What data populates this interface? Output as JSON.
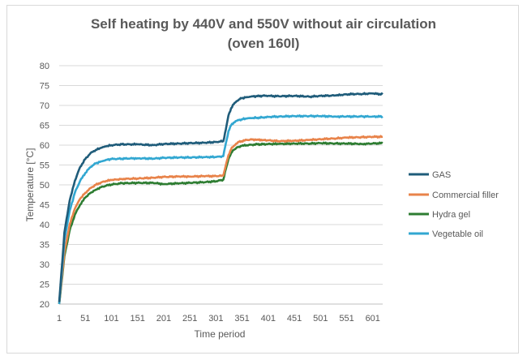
{
  "chart_data": {
    "type": "line",
    "title_line1": "Self heating by 440V and 550V without air circulation",
    "title_line2": "(oven 160l)",
    "xlabel": "Time period",
    "ylabel": "Temperature [°C]",
    "xlim": [
      1,
      620
    ],
    "ylim": [
      20,
      80
    ],
    "xticks": [
      "1",
      "51",
      "101",
      "151",
      "201",
      "251",
      "301",
      "351",
      "401",
      "451",
      "501",
      "551",
      "601"
    ],
    "yticks": [
      "20",
      "25",
      "30",
      "35",
      "40",
      "45",
      "50",
      "55",
      "60",
      "65",
      "70",
      "75",
      "80"
    ],
    "grid": "horizontal",
    "legend_position": "right",
    "x": [
      1,
      11,
      21,
      31,
      41,
      51,
      61,
      71,
      81,
      91,
      101,
      121,
      151,
      181,
      201,
      231,
      251,
      281,
      301,
      315,
      320,
      325,
      330,
      335,
      340,
      345,
      350,
      360,
      370,
      380,
      391,
      401,
      421,
      451,
      481,
      501,
      531,
      551,
      581,
      601,
      620
    ],
    "series": [
      {
        "name": "GAS",
        "color": "#1f5c7a",
        "values": [
          20.5,
          38,
          46,
          51,
          54.5,
          56.5,
          58,
          58.8,
          59.3,
          59.7,
          60.0,
          60.2,
          60.2,
          60.0,
          60.3,
          60.4,
          60.5,
          60.6,
          60.8,
          61.0,
          64,
          67.5,
          69.3,
          70.3,
          71.0,
          71.5,
          71.8,
          72.1,
          72.3,
          72.3,
          72.4,
          72.4,
          72.3,
          72.4,
          72.2,
          72.4,
          72.5,
          72.8,
          72.9,
          73.0,
          72.8
        ]
      },
      {
        "name": "Commercial filler",
        "color": "#e8834a",
        "values": [
          20.0,
          33,
          40,
          44,
          46.5,
          48,
          49.2,
          50.0,
          50.6,
          51.0,
          51.2,
          51.5,
          51.6,
          51.8,
          52.0,
          52.1,
          52.1,
          52.2,
          52.2,
          52.3,
          55,
          57.5,
          59.0,
          59.8,
          60.4,
          60.8,
          61.0,
          61.3,
          61.4,
          61.4,
          61.3,
          61.2,
          61.0,
          61.1,
          61.3,
          61.5,
          61.7,
          61.9,
          62.0,
          62.1,
          62.1
        ]
      },
      {
        "name": "Hydra gel",
        "color": "#2e7d32",
        "values": [
          20.0,
          32,
          38.5,
          42.5,
          45,
          46.8,
          48,
          48.8,
          49.4,
          49.8,
          50.1,
          50.4,
          50.5,
          50.5,
          50.2,
          50.4,
          50.5,
          50.7,
          50.9,
          51.3,
          54,
          56.5,
          58,
          58.8,
          59.3,
          59.6,
          59.8,
          60.0,
          60.1,
          60.2,
          60.2,
          60.3,
          60.3,
          60.4,
          60.4,
          60.5,
          60.4,
          60.4,
          60.3,
          60.4,
          60.5
        ]
      },
      {
        "name": "Vegetable oil",
        "color": "#32a7d1",
        "values": [
          20.0,
          36,
          43.5,
          48,
          51,
          53,
          54.5,
          55.4,
          55.9,
          56.3,
          56.5,
          56.6,
          56.7,
          56.6,
          56.8,
          56.9,
          56.9,
          57.0,
          57.0,
          57.2,
          60.5,
          63.5,
          65.0,
          65.7,
          66.1,
          66.3,
          66.5,
          66.7,
          66.8,
          66.9,
          67.0,
          67.1,
          67.2,
          67.3,
          67.3,
          67.3,
          67.2,
          67.2,
          67.2,
          67.2,
          67.2
        ]
      }
    ]
  }
}
